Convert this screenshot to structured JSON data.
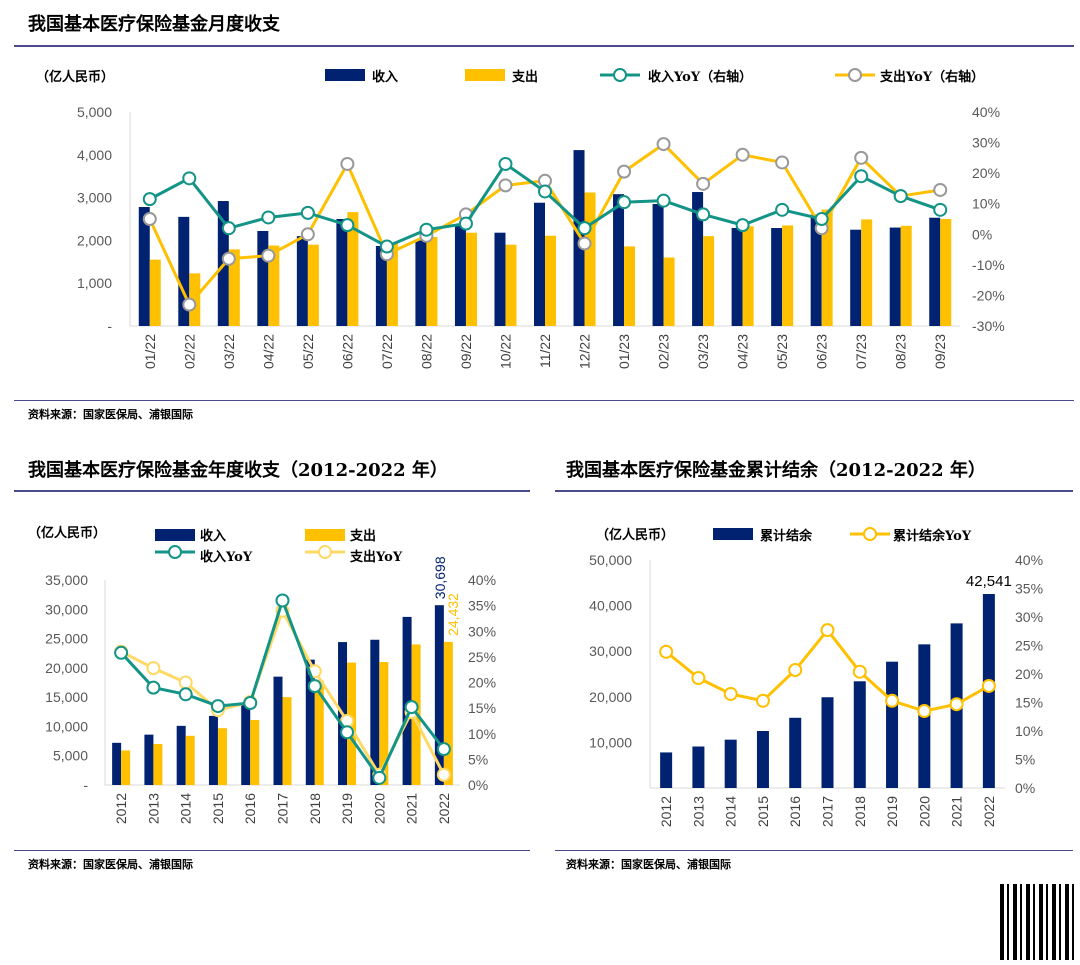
{
  "titles": {
    "monthly": "我国基本医疗保险基金月度收支",
    "annual": "我国基本医疗保险基金年度收支（2012-2022 年）",
    "cumulative": "我国基本医疗保险基金累计结余（2012-2022 年）"
  },
  "source": "资料来源：国家医保局、浦银国际",
  "colors": {
    "income": "#002270",
    "expense": "#FFC000",
    "income_yoy": "#139487",
    "expense_yoy": "#FFC000",
    "expense_yoy_light": "#FFD966"
  },
  "chart_data": [
    {
      "type": "bar",
      "title": "我国基本医疗保险基金月度收支",
      "unit": "（亿人民币）",
      "legend": [
        "收入",
        "支出",
        "收入YoY（右轴）",
        "支出YoY（右轴）"
      ],
      "categories": [
        "01/22",
        "02/22",
        "03/22",
        "04/22",
        "05/22",
        "06/22",
        "07/22",
        "08/22",
        "09/22",
        "10/22",
        "11/22",
        "12/22",
        "01/23",
        "02/23",
        "03/23",
        "04/23",
        "05/23",
        "06/23",
        "07/23",
        "08/23",
        "09/23"
      ],
      "series": [
        {
          "name": "收入",
          "axis": "left",
          "type": "bar",
          "values": [
            2780,
            2550,
            2920,
            2220,
            2100,
            2500,
            1870,
            2000,
            2360,
            2180,
            2880,
            4110,
            3080,
            2850,
            3130,
            2290,
            2290,
            2600,
            2250,
            2300,
            2530
          ]
        },
        {
          "name": "支出",
          "axis": "left",
          "type": "bar",
          "values": [
            1550,
            1230,
            1790,
            1880,
            1900,
            2660,
            1930,
            2080,
            2180,
            1900,
            2110,
            3120,
            1860,
            1600,
            2100,
            2330,
            2350,
            2720,
            2490,
            2340,
            2500
          ]
        },
        {
          "name": "收入YoY",
          "axis": "right",
          "type": "line",
          "values": [
            11.5,
            18.3,
            2,
            5.5,
            7,
            3,
            -4,
            1.5,
            3.5,
            23,
            14,
            2,
            10.5,
            11,
            6.5,
            3,
            8,
            5,
            19,
            12.5,
            8
          ]
        },
        {
          "name": "支出YoY",
          "axis": "right",
          "type": "line",
          "values": [
            5,
            -23,
            -8,
            -7,
            0,
            23,
            -6.5,
            -0.5,
            6.5,
            16,
            17.5,
            -3,
            20.5,
            29.5,
            16.5,
            26,
            23.5,
            2,
            25,
            12.5,
            14.5
          ]
        }
      ],
      "ylim": [
        0,
        5000
      ],
      "ylim_right": [
        -30,
        40
      ],
      "yticks_left": [
        "-",
        "1,000",
        "2,000",
        "3,000",
        "4,000",
        "5,000"
      ],
      "yticks_right": [
        "-30%",
        "-20%",
        "-10%",
        "0%",
        "10%",
        "20%",
        "30%",
        "40%"
      ]
    },
    {
      "type": "bar",
      "title": "我国基本医疗保险基金年度收支（2012-2022 年）",
      "unit": "（亿人民币）",
      "legend": [
        "收入",
        "支出",
        "收入YoY",
        "支出YoY"
      ],
      "categories": [
        "2012",
        "2013",
        "2014",
        "2015",
        "2016",
        "2017",
        "2018",
        "2019",
        "2020",
        "2021",
        "2022"
      ],
      "series": [
        {
          "name": "收入",
          "axis": "left",
          "type": "bar",
          "values": [
            7200,
            8600,
            10100,
            11800,
            14000,
            18500,
            21400,
            24400,
            24800,
            28700,
            30698
          ]
        },
        {
          "name": "支出",
          "axis": "left",
          "type": "bar",
          "values": [
            5900,
            7000,
            8400,
            9700,
            11100,
            15000,
            17800,
            20900,
            21000,
            24000,
            24432
          ]
        },
        {
          "name": "收入YoY",
          "axis": "right",
          "type": "line",
          "values": [
            25.8,
            19,
            17.7,
            15.4,
            16,
            36,
            19.3,
            10.3,
            1.4,
            15.2,
            7
          ]
        },
        {
          "name": "支出YoY",
          "axis": "right",
          "type": "line",
          "values": [
            26,
            22.8,
            20,
            14.6,
            16.2,
            34,
            22.2,
            12.5,
            2,
            14.2,
            2
          ]
        }
      ],
      "data_labels": [
        "30,698",
        "24,432"
      ],
      "ylim": [
        0,
        35000
      ],
      "ylim_right": [
        0,
        40
      ],
      "yticks_left": [
        "-",
        "5,000",
        "10,000",
        "15,000",
        "20,000",
        "25,000",
        "30,000",
        "35,000"
      ],
      "yticks_right": [
        "0%",
        "5%",
        "10%",
        "15%",
        "20%",
        "25%",
        "30%",
        "35%",
        "40%"
      ]
    },
    {
      "type": "bar",
      "title": "我国基本医疗保险基金累计结余（2012-2022 年）",
      "unit": "（亿人民币）",
      "legend": [
        "累计结余",
        "累计结余YoY"
      ],
      "categories": [
        "2012",
        "2013",
        "2014",
        "2015",
        "2016",
        "2017",
        "2018",
        "2019",
        "2020",
        "2021",
        "2022"
      ],
      "series": [
        {
          "name": "累计结余",
          "axis": "left",
          "type": "bar",
          "values": [
            7800,
            9100,
            10600,
            12500,
            15400,
            19900,
            23400,
            27700,
            31500,
            36100,
            42541
          ]
        },
        {
          "name": "累计结余YoY",
          "axis": "right",
          "type": "line",
          "values": [
            23.9,
            19.3,
            16.5,
            15.3,
            20.7,
            27.7,
            20.4,
            15.3,
            13.5,
            14.7,
            17.9
          ]
        }
      ],
      "data_labels": [
        "42,541"
      ],
      "ylim": [
        0,
        50000
      ],
      "ylim_right": [
        0,
        40
      ],
      "yticks_left": [
        "",
        "10,000",
        "20,000",
        "30,000",
        "40,000",
        "50,000"
      ],
      "yticks_right": [
        "0%",
        "5%",
        "10%",
        "15%",
        "20%",
        "25%",
        "30%",
        "35%",
        "40%"
      ]
    }
  ]
}
